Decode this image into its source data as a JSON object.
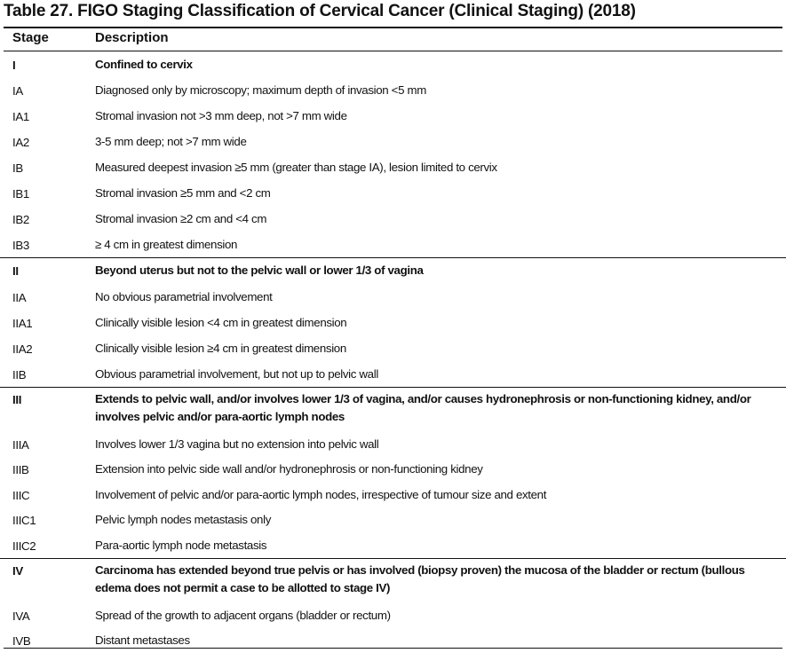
{
  "table": {
    "title": "Table 27. FIGO Staging Classification of Cervical Cancer (Clinical Staging) (2018)",
    "headers": {
      "stage": "Stage",
      "description": "Description"
    },
    "rows": [
      {
        "stage": "I",
        "description": "Confined to cervix",
        "bold": true
      },
      {
        "stage": "IA",
        "description": "Diagnosed only by microscopy; maximum depth of invasion <5 mm"
      },
      {
        "stage": "IA1",
        "description": "Stromal invasion not >3 mm deep, not >7 mm wide"
      },
      {
        "stage": "IA2",
        "description": "3-5 mm deep; not >7 mm wide"
      },
      {
        "stage": "IB",
        "description": "Measured deepest invasion ≥5 mm (greater than stage IA), lesion limited to cervix"
      },
      {
        "stage": "IB1",
        "description": "Stromal invasion ≥5 mm and <2 cm"
      },
      {
        "stage": "IB2",
        "description": "Stromal invasion ≥2 cm and <4 cm"
      },
      {
        "stage": "IB3",
        "description": "≥ 4 cm in greatest dimension"
      },
      {
        "stage": "II",
        "description": "Beyond uterus but not to the pelvic wall or lower 1/3 of vagina",
        "bold": true
      },
      {
        "stage": "IIA",
        "description": "No obvious parametrial involvement"
      },
      {
        "stage": "IIA1",
        "description": "Clinically visible lesion <4 cm in greatest dimension"
      },
      {
        "stage": "IIA2",
        "description": "Clinically visible lesion ≥4 cm in greatest dimension"
      },
      {
        "stage": "IIB",
        "description": "Obvious parametrial involvement, but not up to pelvic wall"
      },
      {
        "stage": "III",
        "description": "Extends to pelvic wall, and/or involves lower 1/3 of vagina, and/or causes hydronephrosis or non-functioning kidney, and/or involves pelvic and/or para-aortic lymph nodes",
        "bold": true
      },
      {
        "stage": "IIIA",
        "description": "Involves lower 1/3 vagina but no extension into pelvic wall"
      },
      {
        "stage": "IIIB",
        "description": "Extension into pelvic side wall and/or hydronephrosis or non-functioning kidney"
      },
      {
        "stage": "IIIC",
        "description": "Involvement of pelvic and/or para-aortic lymph nodes, irrespective of tumour size and extent"
      },
      {
        "stage": "IIIC1",
        "description": "Pelvic lymph nodes metastasis only"
      },
      {
        "stage": "IIIC2",
        "description": "Para-aortic lymph node metastasis"
      },
      {
        "stage": "IV",
        "description": "Carcinoma has extended beyond true pelvis or has involved (biopsy proven) the mucosa of the bladder or rectum (bullous edema does not permit a case to be allotted to stage IV)",
        "bold": true
      },
      {
        "stage": "IVA",
        "description": "Spread of the growth to adjacent organs (bladder or rectum)"
      },
      {
        "stage": "IVB",
        "description": "Distant metastases"
      }
    ]
  }
}
